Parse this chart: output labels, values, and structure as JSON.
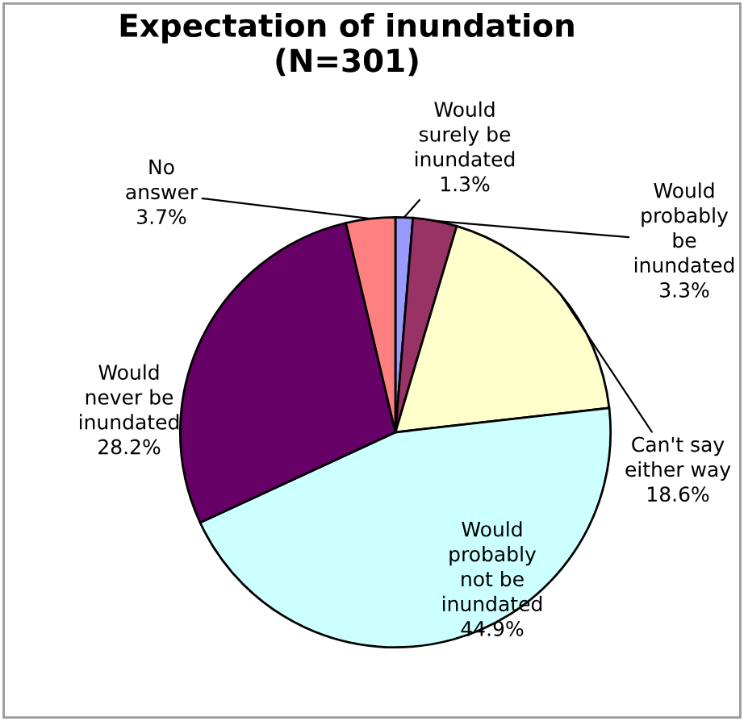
{
  "chart_data": {
    "type": "pie",
    "title": "Expectation of inundation\n(N=301)",
    "categories": [
      "Would\nsurely be\ninundated",
      "Would\nprobably\nbe\ninundated",
      "Can't say\neither way",
      "Would\nprobably\nnot be\ninundated",
      "Would\nnever be\ninundated",
      "No\nanswer"
    ],
    "values": [
      1.3,
      3.3,
      18.6,
      44.9,
      28.2,
      3.7
    ],
    "value_labels": [
      "1.3%",
      "3.3%",
      "18.6%",
      "44.9%",
      "28.2%",
      "3.7%"
    ],
    "colors": [
      "#9999ff",
      "#993366",
      "#ffffcc",
      "#ccffff",
      "#660066",
      "#ff8080"
    ]
  }
}
